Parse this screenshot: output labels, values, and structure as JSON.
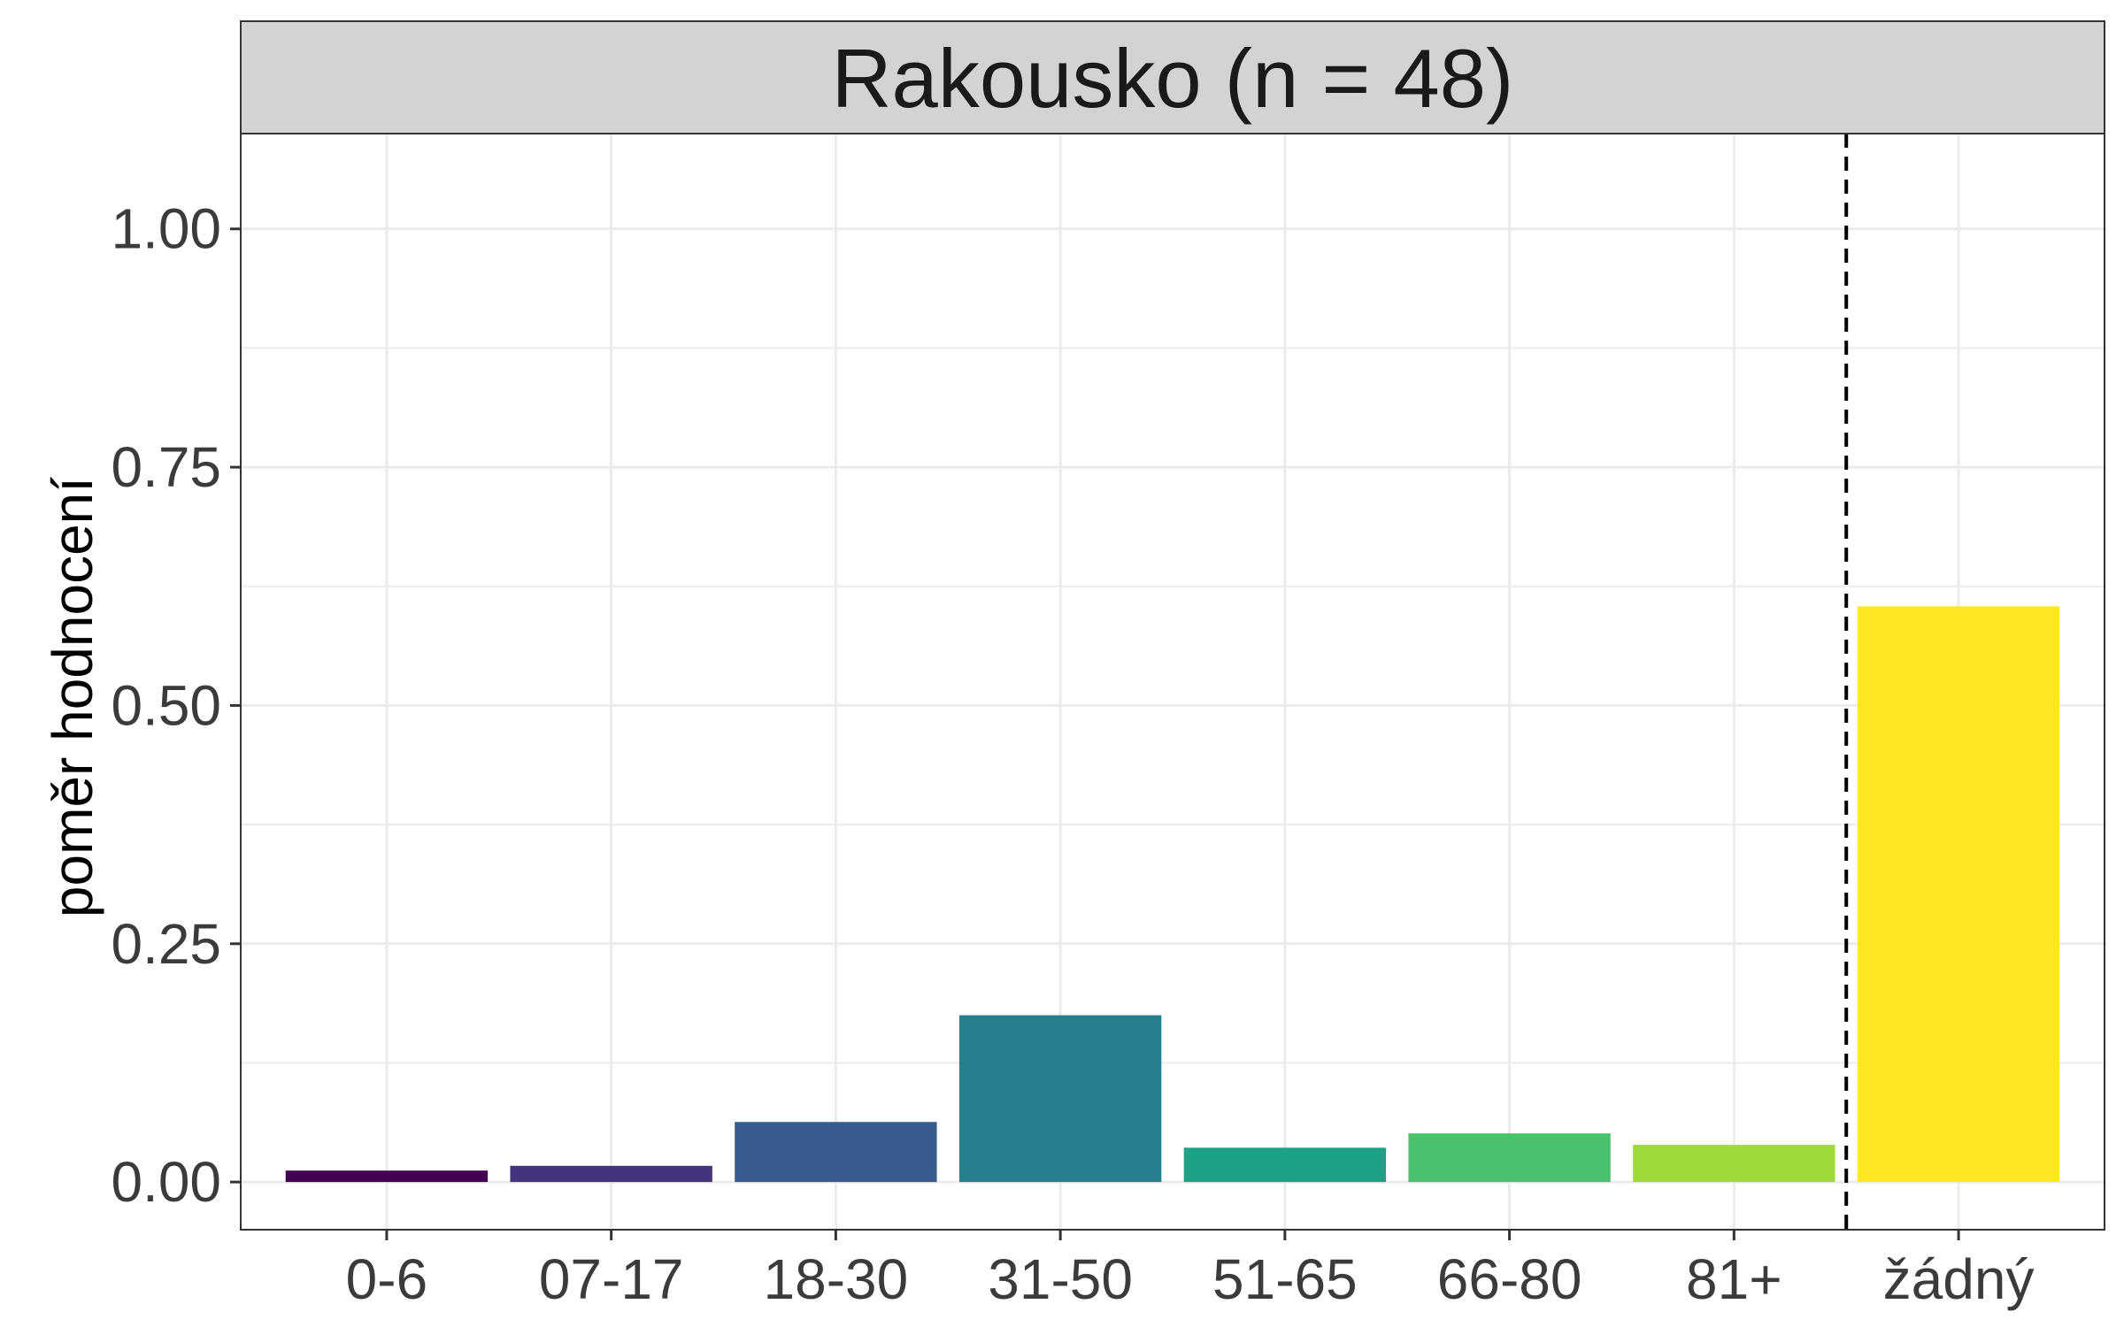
{
  "chart_data": {
    "type": "bar",
    "title": "Rakousko (n = 48)",
    "xlabel": "",
    "ylabel": "poměr hodnocení",
    "categories": [
      "0-6",
      "07-17",
      "18-30",
      "31-50",
      "51-65",
      "66-80",
      "81+",
      "žádný"
    ],
    "values": [
      0.012,
      0.017,
      0.063,
      0.175,
      0.036,
      0.051,
      0.039,
      0.604
    ],
    "colors": [
      "#440154",
      "#46337E",
      "#365C8D",
      "#277F8E",
      "#1FA187",
      "#4AC16D",
      "#9FDA3A",
      "#FDE725"
    ],
    "ylim": [
      -0.05,
      1.1
    ],
    "yticks": [
      "0.00",
      "0.25",
      "0.50",
      "0.75",
      "1.00"
    ],
    "ytick_values": [
      0,
      0.25,
      0.5,
      0.75,
      1.0
    ],
    "grid": true,
    "reference_line": {
      "style": "dashed",
      "between": [
        "81+",
        "žádný"
      ]
    }
  }
}
